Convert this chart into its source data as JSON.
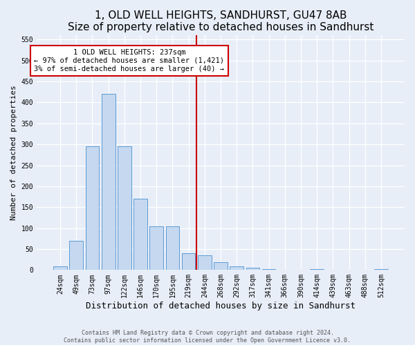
{
  "title": "1, OLD WELL HEIGHTS, SANDHURST, GU47 8AB",
  "subtitle": "Size of property relative to detached houses in Sandhurst",
  "xlabel": "Distribution of detached houses by size in Sandhurst",
  "ylabel": "Number of detached properties",
  "footer_line1": "Contains HM Land Registry data © Crown copyright and database right 2024.",
  "footer_line2": "Contains public sector information licensed under the Open Government Licence v3.0.",
  "categories": [
    "24sqm",
    "49sqm",
    "73sqm",
    "97sqm",
    "122sqm",
    "146sqm",
    "170sqm",
    "195sqm",
    "219sqm",
    "244sqm",
    "268sqm",
    "292sqm",
    "317sqm",
    "341sqm",
    "366sqm",
    "390sqm",
    "414sqm",
    "439sqm",
    "463sqm",
    "488sqm",
    "512sqm"
  ],
  "bar_values": [
    8,
    70,
    295,
    420,
    295,
    170,
    105,
    105,
    40,
    35,
    18,
    8,
    5,
    2,
    0,
    0,
    2,
    0,
    0,
    0,
    2
  ],
  "bar_color": "#c5d8f0",
  "bar_edgecolor": "#5b9bd5",
  "ylim_max": 560,
  "yticks": [
    0,
    50,
    100,
    150,
    200,
    250,
    300,
    350,
    400,
    450,
    500,
    550
  ],
  "vline_color": "#cc0000",
  "annotation_title": "1 OLD WELL HEIGHTS: 237sqm",
  "annotation_line1": "← 97% of detached houses are smaller (1,421)",
  "annotation_line2": "3% of semi-detached houses are larger (40) →",
  "background_color": "#e8eef8",
  "title_fontsize": 11,
  "subtitle_fontsize": 9.5,
  "xlabel_fontsize": 9,
  "ylabel_fontsize": 8,
  "tick_fontsize": 7,
  "annot_fontsize": 7.5,
  "footer_fontsize": 6
}
